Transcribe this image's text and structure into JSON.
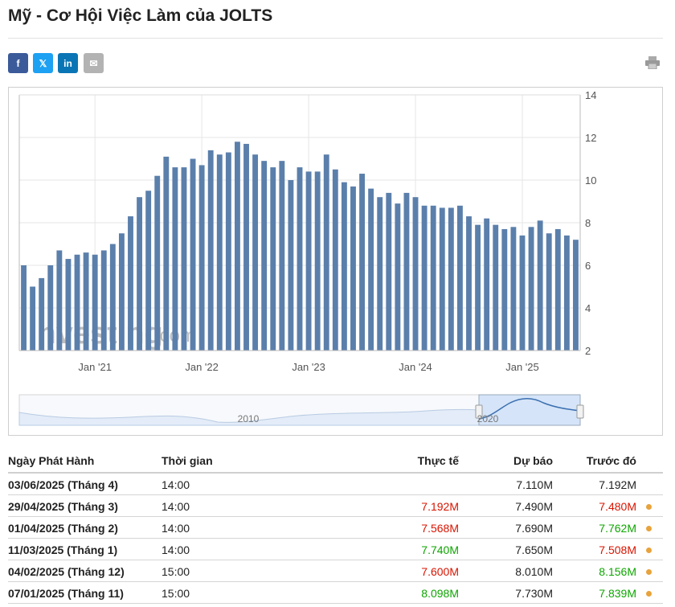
{
  "page": {
    "title": "Mỹ - Cơ Hội Việc Làm của JOLTS"
  },
  "share": {
    "facebook_glyph": "f",
    "twitter_glyph": "𝕏",
    "linkedin_glyph": "in",
    "email_glyph": "✉"
  },
  "watermark": {
    "brand": "Investing",
    "suffix": ".com"
  },
  "colors": {
    "bar": "#5b7fab",
    "up": "#0ea600",
    "down": "#d91400",
    "dot": "#e8a33c"
  },
  "chart_data": {
    "type": "bar",
    "ylim": [
      2,
      14
    ],
    "yticks": [
      "14",
      "12",
      "10",
      "8",
      "6",
      "4",
      "2"
    ],
    "ytick_values": [
      14,
      12,
      10,
      8,
      6,
      4,
      2
    ],
    "xticks": [
      "Jan '21",
      "Jan '22",
      "Jan '23",
      "Jan '24",
      "Jan '25"
    ],
    "xtick_indices": [
      8,
      20,
      32,
      44,
      56
    ],
    "values": [
      6.0,
      5.0,
      5.4,
      6.0,
      6.7,
      6.3,
      6.5,
      6.6,
      6.5,
      6.7,
      7.0,
      7.5,
      8.3,
      9.2,
      9.5,
      10.2,
      11.1,
      10.6,
      10.6,
      11.0,
      10.7,
      11.4,
      11.2,
      11.3,
      11.8,
      11.7,
      11.2,
      10.9,
      10.6,
      10.9,
      10.0,
      10.6,
      10.4,
      10.4,
      11.2,
      10.5,
      9.9,
      9.7,
      10.3,
      9.6,
      9.2,
      9.4,
      8.9,
      9.4,
      9.2,
      8.8,
      8.8,
      8.7,
      8.7,
      8.8,
      8.3,
      7.9,
      8.2,
      7.9,
      7.7,
      7.8,
      7.4,
      7.8,
      8.1,
      7.5,
      7.7,
      7.4,
      7.2
    ],
    "navigator": {
      "labels": [
        "2010",
        "2020"
      ]
    }
  },
  "table": {
    "headers": {
      "date": "Ngày Phát Hành",
      "time": "Thời gian",
      "actual": "Thực tế",
      "forecast": "Dự báo",
      "previous": "Trước đó"
    },
    "rows": [
      {
        "date": "03/06/2025 (Tháng 4)",
        "time": "14:00",
        "actual": "",
        "actual_color": "black",
        "forecast": "7.110M",
        "previous": "7.192M",
        "previous_color": "black",
        "dot": false
      },
      {
        "date": "29/04/2025 (Tháng 3)",
        "time": "14:00",
        "actual": "7.192M",
        "actual_color": "red",
        "forecast": "7.490M",
        "previous": "7.480M",
        "previous_color": "red",
        "dot": true
      },
      {
        "date": "01/04/2025 (Tháng 2)",
        "time": "14:00",
        "actual": "7.568M",
        "actual_color": "red",
        "forecast": "7.690M",
        "previous": "7.762M",
        "previous_color": "green",
        "dot": true
      },
      {
        "date": "11/03/2025 (Tháng 1)",
        "time": "14:00",
        "actual": "7.740M",
        "actual_color": "green",
        "forecast": "7.650M",
        "previous": "7.508M",
        "previous_color": "red",
        "dot": true
      },
      {
        "date": "04/02/2025 (Tháng 12)",
        "time": "15:00",
        "actual": "7.600M",
        "actual_color": "red",
        "forecast": "8.010M",
        "previous": "8.156M",
        "previous_color": "green",
        "dot": true
      },
      {
        "date": "07/01/2025 (Tháng 11)",
        "time": "15:00",
        "actual": "8.098M",
        "actual_color": "green",
        "forecast": "7.730M",
        "previous": "7.839M",
        "previous_color": "green",
        "dot": true
      }
    ]
  }
}
